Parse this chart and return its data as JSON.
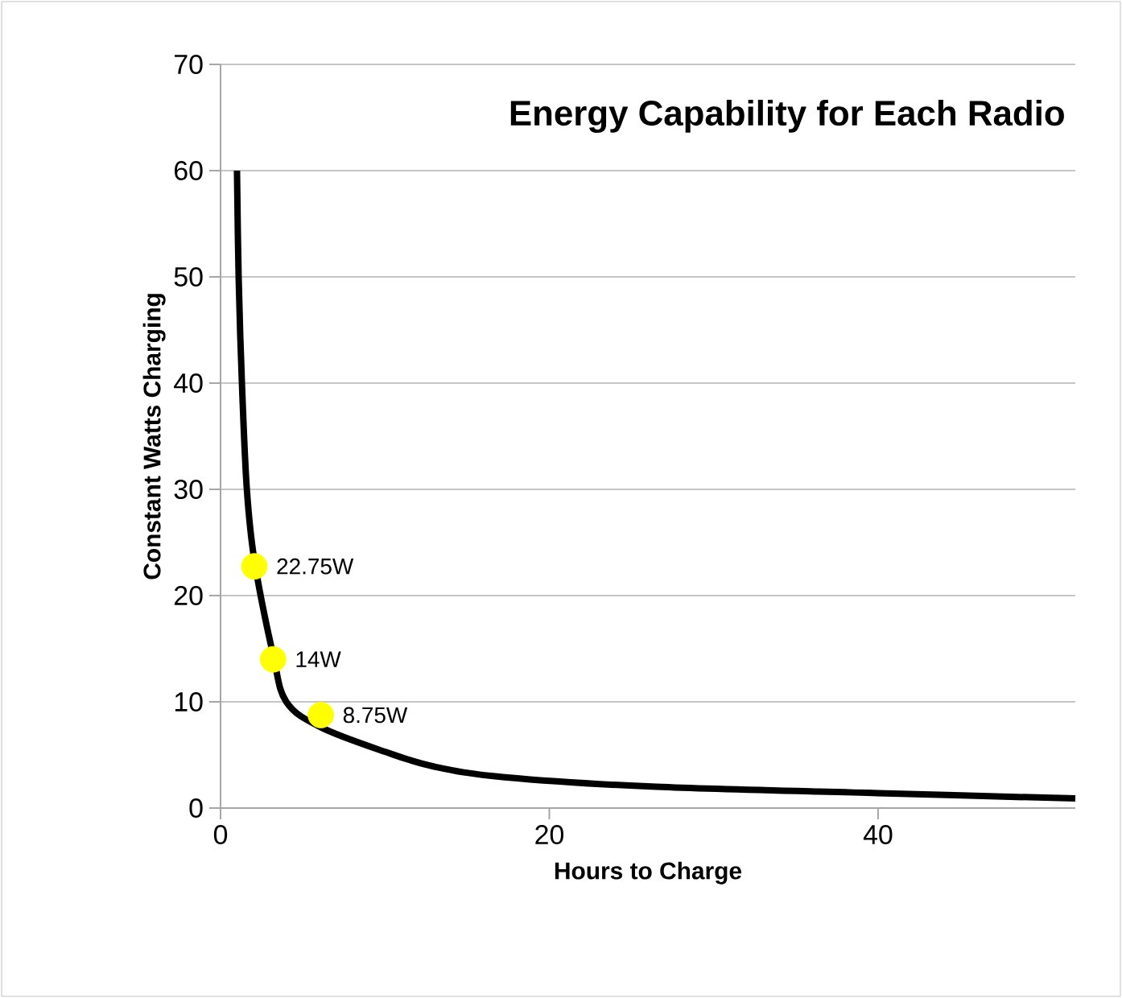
{
  "chart_data": {
    "type": "line",
    "title": "Energy Capability for Each Radio",
    "xlabel": "Hours to Charge",
    "ylabel": "Constant Watts Charging",
    "xlim": [
      0,
      52
    ],
    "ylim": [
      0,
      70
    ],
    "xticks": [
      0,
      20,
      40
    ],
    "yticks": [
      0,
      10,
      20,
      30,
      40,
      50,
      60,
      70
    ],
    "grid": "y",
    "series": [
      {
        "color": "#000000",
        "x": [
          1,
          1.1,
          1.3,
          1.6,
          2.06,
          3.2,
          4,
          6.1,
          10,
          13,
          17.3,
          26.5,
          40,
          52
        ],
        "values": [
          60,
          50,
          40,
          30,
          23.3,
          14.4,
          10,
          7.6,
          5.3,
          3.9,
          2.9,
          2.0,
          1.4,
          0.9
        ]
      },
      {
        "type": "scatter",
        "color": "#ffff00",
        "marker": "circle",
        "x": [
          2.06,
          3.2,
          6.1
        ],
        "values": [
          22.75,
          14,
          8.75
        ],
        "value_labels": [
          "22.75W",
          "14W",
          "8.75W"
        ]
      }
    ]
  }
}
